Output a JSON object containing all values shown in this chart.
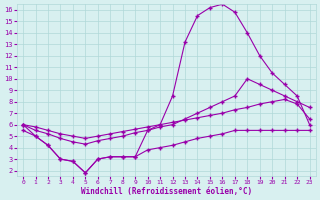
{
  "line1_x": [
    0,
    1,
    2,
    3,
    4,
    5,
    6,
    7,
    8,
    9,
    10,
    11,
    12,
    13,
    14,
    15,
    16,
    17,
    18,
    19,
    20,
    21,
    22,
    23
  ],
  "line1_y": [
    6.0,
    5.0,
    4.2,
    3.0,
    2.8,
    1.8,
    3.0,
    3.2,
    3.2,
    3.2,
    5.5,
    6.0,
    8.5,
    13.2,
    15.5,
    16.2,
    16.5,
    15.8,
    14.0,
    12.0,
    10.5,
    9.5,
    8.5,
    6.0
  ],
  "line2_x": [
    0,
    1,
    2,
    3,
    4,
    5,
    6,
    7,
    8,
    9,
    10,
    11,
    12,
    13,
    14,
    15,
    16,
    17,
    18,
    19,
    20,
    21,
    22,
    23
  ],
  "line2_y": [
    6.0,
    5.5,
    5.2,
    4.8,
    4.5,
    4.3,
    4.6,
    4.8,
    5.0,
    5.3,
    5.5,
    5.8,
    6.0,
    6.5,
    7.0,
    7.5,
    8.0,
    8.5,
    10.0,
    9.5,
    9.0,
    8.5,
    8.0,
    7.5
  ],
  "line3_x": [
    0,
    1,
    2,
    3,
    4,
    5,
    6,
    7,
    8,
    9,
    10,
    11,
    12,
    13,
    14,
    15,
    16,
    17,
    18,
    19,
    20,
    21,
    22,
    23
  ],
  "line3_y": [
    6.0,
    5.8,
    5.5,
    5.2,
    5.0,
    4.8,
    5.0,
    5.2,
    5.4,
    5.6,
    5.8,
    6.0,
    6.2,
    6.4,
    6.6,
    6.8,
    7.0,
    7.3,
    7.5,
    7.8,
    8.0,
    8.2,
    7.8,
    6.5
  ],
  "line4_x": [
    0,
    1,
    2,
    3,
    4,
    5,
    6,
    7,
    8,
    9,
    10,
    11,
    12,
    13,
    14,
    15,
    16,
    17,
    18,
    19,
    20,
    21,
    22,
    23
  ],
  "line4_y": [
    5.5,
    5.0,
    4.2,
    3.0,
    2.8,
    1.8,
    3.0,
    3.2,
    3.2,
    3.2,
    3.8,
    4.0,
    4.2,
    4.5,
    4.8,
    5.0,
    5.2,
    5.5,
    5.5,
    5.5,
    5.5,
    5.5,
    5.5,
    5.5
  ],
  "color": "#9900aa",
  "bg_color": "#d8f0f0",
  "grid_color": "#b0d8d8",
  "xlabel": "Windchill (Refroidissement éolien,°C)",
  "xlim": [
    -0.5,
    23.5
  ],
  "ylim": [
    1.5,
    16.5
  ],
  "yticks": [
    2,
    3,
    4,
    5,
    6,
    7,
    8,
    9,
    10,
    11,
    12,
    13,
    14,
    15,
    16
  ],
  "xticks": [
    0,
    1,
    2,
    3,
    4,
    5,
    6,
    7,
    8,
    9,
    10,
    11,
    12,
    13,
    14,
    15,
    16,
    17,
    18,
    19,
    20,
    21,
    22,
    23
  ]
}
